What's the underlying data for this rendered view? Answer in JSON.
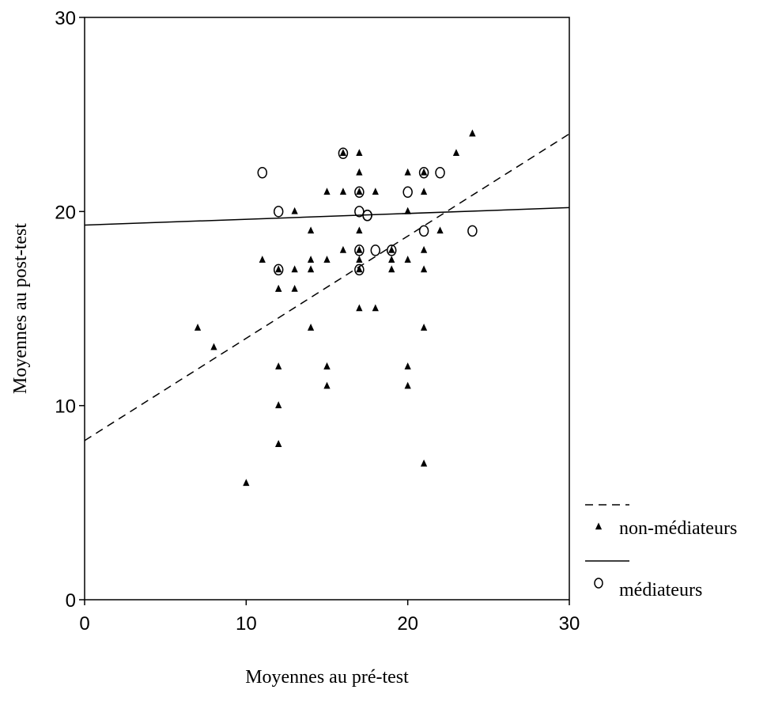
{
  "chart_data": {
    "type": "scatter",
    "xlabel": "Moyennes au pré-test",
    "ylabel": "Moyennes au post-test",
    "xlim": [
      0,
      30
    ],
    "ylim": [
      0,
      30
    ],
    "xticks": [
      "0",
      "10",
      "20",
      "30"
    ],
    "yticks": [
      "0",
      "10",
      "20",
      "30"
    ],
    "grid": false,
    "legend_position": "right-bottom",
    "series": [
      {
        "name": "non-médiateurs",
        "marker": "filled-triangle",
        "line_style": "dashed",
        "color": "#000000",
        "points": [
          [
            7,
            14
          ],
          [
            8,
            13
          ],
          [
            10,
            6
          ],
          [
            11,
            17.5
          ],
          [
            12,
            16
          ],
          [
            12,
            16
          ],
          [
            12,
            12
          ],
          [
            12,
            10
          ],
          [
            12,
            8
          ],
          [
            12,
            8
          ],
          [
            12,
            17
          ],
          [
            13,
            20
          ],
          [
            13,
            17
          ],
          [
            13,
            16
          ],
          [
            14,
            19
          ],
          [
            14,
            17.5
          ],
          [
            14,
            17
          ],
          [
            14,
            14
          ],
          [
            15,
            21
          ],
          [
            15,
            17.5
          ],
          [
            15,
            12
          ],
          [
            15,
            12
          ],
          [
            15,
            11
          ],
          [
            16,
            23
          ],
          [
            16,
            21
          ],
          [
            16,
            18
          ],
          [
            17,
            23
          ],
          [
            17,
            22
          ],
          [
            17,
            21
          ],
          [
            17,
            19
          ],
          [
            17,
            18
          ],
          [
            17,
            17.5
          ],
          [
            17,
            17
          ],
          [
            17,
            15
          ],
          [
            18,
            21
          ],
          [
            18,
            15
          ],
          [
            19,
            18
          ],
          [
            19,
            17.5
          ],
          [
            19,
            17
          ],
          [
            20,
            22
          ],
          [
            20,
            20
          ],
          [
            20,
            20
          ],
          [
            20,
            17.5
          ],
          [
            20,
            12
          ],
          [
            20,
            11
          ],
          [
            21,
            22
          ],
          [
            21,
            21
          ],
          [
            21,
            18
          ],
          [
            21,
            17
          ],
          [
            21,
            14
          ],
          [
            21,
            7
          ],
          [
            22,
            19
          ],
          [
            23,
            23
          ],
          [
            24,
            24
          ],
          [
            24,
            24
          ]
        ],
        "fit_line": {
          "x": [
            0,
            30
          ],
          "y": [
            8.2,
            24
          ]
        }
      },
      {
        "name": "médiateurs",
        "marker": "open-circle",
        "line_style": "solid",
        "color": "#000000",
        "points": [
          [
            11,
            22
          ],
          [
            12,
            20
          ],
          [
            12,
            17
          ],
          [
            16,
            23
          ],
          [
            17,
            21
          ],
          [
            17,
            20
          ],
          [
            17,
            18
          ],
          [
            17,
            17
          ],
          [
            17.5,
            19.8
          ],
          [
            17.5,
            19.8
          ],
          [
            18,
            18
          ],
          [
            19,
            18
          ],
          [
            20,
            21
          ],
          [
            21,
            22
          ],
          [
            21,
            19
          ],
          [
            22,
            22
          ],
          [
            24,
            19
          ]
        ],
        "fit_line": {
          "x": [
            0,
            30
          ],
          "y": [
            19.3,
            20.2
          ]
        }
      }
    ]
  }
}
